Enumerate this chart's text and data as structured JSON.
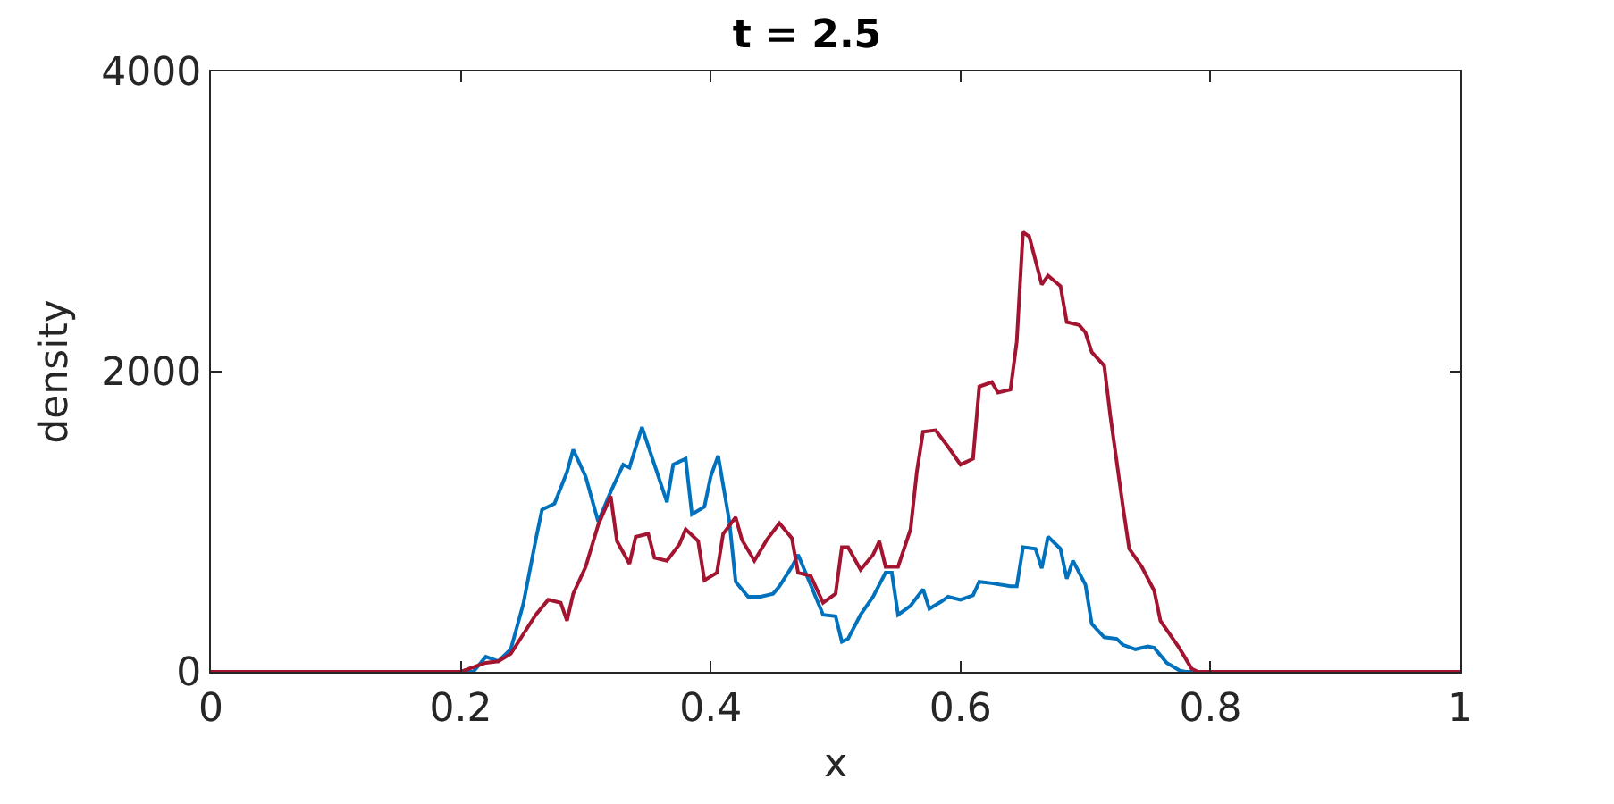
{
  "chart_data": {
    "type": "line",
    "title": "t = 2.5",
    "xlabel": "x",
    "ylabel": "density",
    "xlim": [
      0,
      1
    ],
    "xticks": [
      0,
      0.2,
      0.4,
      0.6,
      0.8,
      1
    ],
    "ylim": [
      0,
      4000
    ],
    "yticks": [
      0,
      2000,
      4000
    ],
    "grid": false,
    "series": [
      {
        "color": "#0072bd",
        "x": [
          0,
          0.2,
          0.21,
          0.22,
          0.23,
          0.24,
          0.25,
          0.26,
          0.265,
          0.275,
          0.285,
          0.29,
          0.3,
          0.31,
          0.32,
          0.33,
          0.335,
          0.345,
          0.355,
          0.365,
          0.37,
          0.38,
          0.385,
          0.395,
          0.4,
          0.406,
          0.415,
          0.42,
          0.43,
          0.44,
          0.45,
          0.455,
          0.465,
          0.47,
          0.48,
          0.49,
          0.5,
          0.505,
          0.51,
          0.52,
          0.53,
          0.54,
          0.545,
          0.55,
          0.56,
          0.57,
          0.575,
          0.585,
          0.59,
          0.6,
          0.61,
          0.615,
          0.625,
          0.64,
          0.645,
          0.65,
          0.66,
          0.665,
          0.67,
          0.68,
          0.685,
          0.69,
          0.7,
          0.705,
          0.715,
          0.725,
          0.73,
          0.74,
          0.75,
          0.755,
          0.765,
          0.775,
          0.78,
          1
        ],
        "values": [
          0,
          0,
          0,
          100,
          70,
          150,
          450,
          880,
          1080,
          1120,
          1330,
          1480,
          1300,
          1000,
          1200,
          1380,
          1360,
          1630,
          1380,
          1130,
          1380,
          1420,
          1050,
          1100,
          1300,
          1440,
          1000,
          600,
          500,
          500,
          520,
          570,
          700,
          780,
          580,
          380,
          370,
          200,
          220,
          380,
          500,
          660,
          660,
          380,
          440,
          550,
          420,
          470,
          500,
          480,
          510,
          600,
          590,
          570,
          570,
          830,
          820,
          690,
          900,
          820,
          620,
          740,
          580,
          320,
          230,
          220,
          180,
          150,
          170,
          160,
          60,
          10,
          0,
          0
        ]
      },
      {
        "color": "#a2142f",
        "x": [
          0,
          0.2,
          0.21,
          0.22,
          0.23,
          0.24,
          0.25,
          0.26,
          0.27,
          0.28,
          0.285,
          0.29,
          0.3,
          0.31,
          0.32,
          0.325,
          0.335,
          0.34,
          0.35,
          0.355,
          0.365,
          0.375,
          0.38,
          0.39,
          0.395,
          0.405,
          0.41,
          0.42,
          0.425,
          0.435,
          0.445,
          0.455,
          0.465,
          0.47,
          0.48,
          0.49,
          0.5,
          0.505,
          0.51,
          0.52,
          0.53,
          0.535,
          0.54,
          0.55,
          0.56,
          0.565,
          0.57,
          0.58,
          0.59,
          0.6,
          0.61,
          0.615,
          0.625,
          0.63,
          0.64,
          0.645,
          0.65,
          0.655,
          0.665,
          0.67,
          0.68,
          0.685,
          0.695,
          0.7,
          0.705,
          0.715,
          0.72,
          0.73,
          0.735,
          0.745,
          0.755,
          0.76,
          0.775,
          0.785,
          0.79,
          1
        ],
        "values": [
          0,
          0,
          30,
          60,
          70,
          120,
          250,
          380,
          480,
          460,
          340,
          520,
          700,
          980,
          1170,
          870,
          720,
          900,
          920,
          760,
          740,
          850,
          950,
          870,
          610,
          660,
          920,
          1030,
          880,
          740,
          880,
          990,
          890,
          660,
          640,
          460,
          520,
          830,
          830,
          680,
          780,
          870,
          700,
          700,
          950,
          1330,
          1600,
          1610,
          1500,
          1380,
          1420,
          1900,
          1930,
          1860,
          1880,
          2200,
          2930,
          2900,
          2580,
          2640,
          2570,
          2330,
          2310,
          2260,
          2130,
          2040,
          1700,
          1100,
          820,
          700,
          540,
          340,
          160,
          20,
          0,
          0
        ]
      }
    ]
  }
}
